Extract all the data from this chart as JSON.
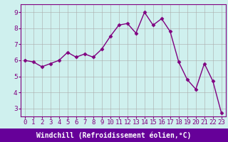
{
  "x": [
    0,
    1,
    2,
    3,
    4,
    5,
    6,
    7,
    8,
    9,
    10,
    11,
    12,
    13,
    14,
    15,
    16,
    17,
    18,
    19,
    20,
    21,
    22,
    23
  ],
  "y": [
    6.0,
    5.9,
    5.6,
    5.8,
    6.0,
    6.5,
    6.2,
    6.4,
    6.2,
    6.7,
    7.5,
    8.2,
    8.3,
    7.7,
    9.0,
    8.2,
    8.6,
    7.8,
    5.9,
    4.8,
    4.2,
    5.8,
    4.7,
    2.7
  ],
  "line_color": "#800080",
  "marker": "D",
  "markersize": 2.5,
  "linewidth": 1.0,
  "bg_color": "#cff0ee",
  "grid_color": "#aaaaaa",
  "xlabel": "Windchill (Refroidissement éolien,°C)",
  "xlabel_color": "#ffffff",
  "xlabel_bg": "#6600aa",
  "tick_color": "#800080",
  "ylim": [
    2.5,
    9.5
  ],
  "xlim": [
    -0.5,
    23.5
  ],
  "yticks": [
    3,
    4,
    5,
    6,
    7,
    8,
    9
  ],
  "xticks": [
    0,
    1,
    2,
    3,
    4,
    5,
    6,
    7,
    8,
    9,
    10,
    11,
    12,
    13,
    14,
    15,
    16,
    17,
    18,
    19,
    20,
    21,
    22,
    23
  ],
  "xlabel_fontsize": 7.0,
  "tick_fontsize": 6.5,
  "spine_color": "#800080",
  "bottom_bar_color": "#660099"
}
